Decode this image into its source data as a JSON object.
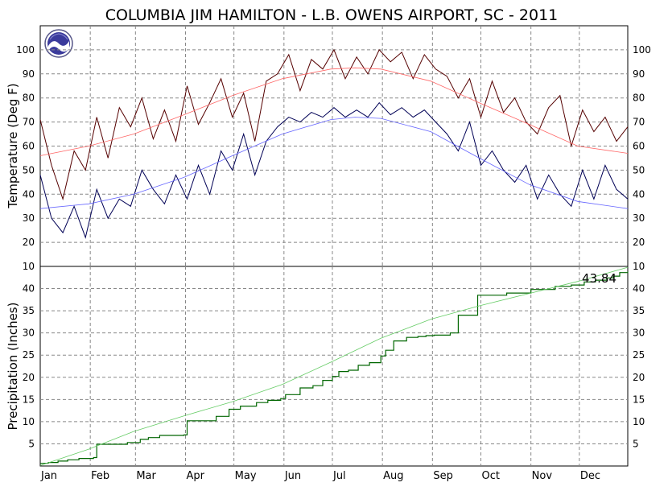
{
  "chart_data": [
    {
      "type": "line",
      "title": "COLUMBIA JIM HAMILTON - L.B. OWENS AIRPORT, SC - 2011",
      "ylabel": "Temperature (Deg F)",
      "ylim": [
        10,
        110
      ],
      "yticks": [
        10,
        20,
        30,
        40,
        50,
        60,
        70,
        80,
        90,
        100
      ],
      "grid": true,
      "x_unit": "day of year",
      "series": [
        {
          "role": "daily_high",
          "color": "#550000",
          "x": [
            1,
            8,
            15,
            22,
            29,
            36,
            43,
            50,
            57,
            64,
            71,
            78,
            85,
            92,
            99,
            106,
            113,
            120,
            127,
            134,
            141,
            148,
            155,
            162,
            169,
            176,
            183,
            190,
            197,
            204,
            211,
            218,
            225,
            232,
            239,
            246,
            253,
            260,
            267,
            274,
            281,
            288,
            295,
            302,
            309,
            316,
            323,
            330,
            337,
            344,
            351,
            358,
            365
          ],
          "values": [
            71,
            52,
            38,
            58,
            50,
            72,
            55,
            76,
            68,
            80,
            63,
            75,
            62,
            85,
            69,
            78,
            88,
            72,
            82,
            62,
            87,
            90,
            98,
            83,
            96,
            92,
            100,
            88,
            97,
            90,
            100,
            95,
            99,
            88,
            98,
            92,
            89,
            80,
            88,
            72,
            87,
            74,
            80,
            70,
            65,
            76,
            81,
            60,
            75,
            66,
            72,
            62,
            68
          ]
        },
        {
          "role": "daily_low",
          "color": "#000055",
          "x": [
            1,
            8,
            15,
            22,
            29,
            36,
            43,
            50,
            57,
            64,
            71,
            78,
            85,
            92,
            99,
            106,
            113,
            120,
            127,
            134,
            141,
            148,
            155,
            162,
            169,
            176,
            183,
            190,
            197,
            204,
            211,
            218,
            225,
            232,
            239,
            246,
            253,
            260,
            267,
            274,
            281,
            288,
            295,
            302,
            309,
            316,
            323,
            330,
            337,
            344,
            351,
            358,
            365
          ],
          "values": [
            48,
            30,
            24,
            35,
            22,
            42,
            30,
            38,
            35,
            50,
            42,
            36,
            48,
            38,
            52,
            40,
            58,
            50,
            65,
            48,
            62,
            68,
            72,
            70,
            74,
            72,
            76,
            72,
            75,
            72,
            78,
            73,
            76,
            72,
            75,
            70,
            65,
            58,
            70,
            52,
            58,
            50,
            45,
            52,
            38,
            48,
            40,
            35,
            50,
            38,
            52,
            42,
            38
          ]
        },
        {
          "role": "normal_high",
          "color": "#ff6666",
          "x": [
            1,
            31,
            59,
            90,
            120,
            151,
            181,
            196,
            212,
            243,
            273,
            304,
            334,
            365
          ],
          "values": [
            56,
            60,
            65,
            73,
            81,
            88,
            92,
            92.5,
            92,
            87,
            78,
            69,
            60,
            57
          ]
        },
        {
          "role": "normal_low",
          "color": "#6666ff",
          "x": [
            1,
            31,
            59,
            90,
            120,
            151,
            181,
            196,
            212,
            243,
            273,
            304,
            334,
            365
          ],
          "values": [
            34,
            36,
            40,
            47,
            56,
            65,
            71,
            72,
            71.5,
            66,
            55,
            44,
            37,
            34
          ]
        }
      ]
    },
    {
      "type": "line",
      "ylabel": "Precipitation (Inches)",
      "ylim": [
        0,
        45
      ],
      "yticks": [
        5,
        10,
        15,
        20,
        25,
        30,
        35,
        40
      ],
      "grid": true,
      "x_unit": "day of year",
      "months": [
        "Jan",
        "Feb",
        "Mar",
        "Apr",
        "May",
        "Jun",
        "Jul",
        "Aug",
        "Sep",
        "Oct",
        "Nov",
        "Dec"
      ],
      "total_label": "43.84",
      "series": [
        {
          "role": "cumulative_observed",
          "color": "#006600",
          "x": [
            1,
            6,
            12,
            18,
            25,
            34,
            36,
            55,
            63,
            68,
            75,
            90,
            92,
            110,
            118,
            125,
            135,
            142,
            150,
            153,
            162,
            170,
            176,
            182,
            186,
            192,
            198,
            205,
            212,
            215,
            220,
            228,
            235,
            240,
            245,
            255,
            260,
            272,
            290,
            305,
            320,
            330,
            338,
            345,
            352,
            356,
            360,
            365
          ],
          "values": [
            0.6,
            0.8,
            1.1,
            1.4,
            1.7,
            1.9,
            4.9,
            5.3,
            6.0,
            6.4,
            6.9,
            7.0,
            10.2,
            11.2,
            12.8,
            13.5,
            14.3,
            14.8,
            15.2,
            16.1,
            17.6,
            18.1,
            19.3,
            20.2,
            21.3,
            21.6,
            22.7,
            23.3,
            24.8,
            26.1,
            28.2,
            29.0,
            29.2,
            29.4,
            29.5,
            30.0,
            34.0,
            38.5,
            39.0,
            39.8,
            40.5,
            40.8,
            41.5,
            41.9,
            42.4,
            42.8,
            43.6,
            43.84
          ]
        },
        {
          "role": "cumulative_normal",
          "color": "#66cc66",
          "x": [
            1,
            31,
            59,
            90,
            120,
            151,
            181,
            212,
            243,
            273,
            304,
            334,
            365
          ],
          "values": [
            0.1,
            3.8,
            7.8,
            11.3,
            14.5,
            18.4,
            23.4,
            28.8,
            33.1,
            36.1,
            38.9,
            41.6,
            44.8
          ]
        }
      ]
    }
  ]
}
